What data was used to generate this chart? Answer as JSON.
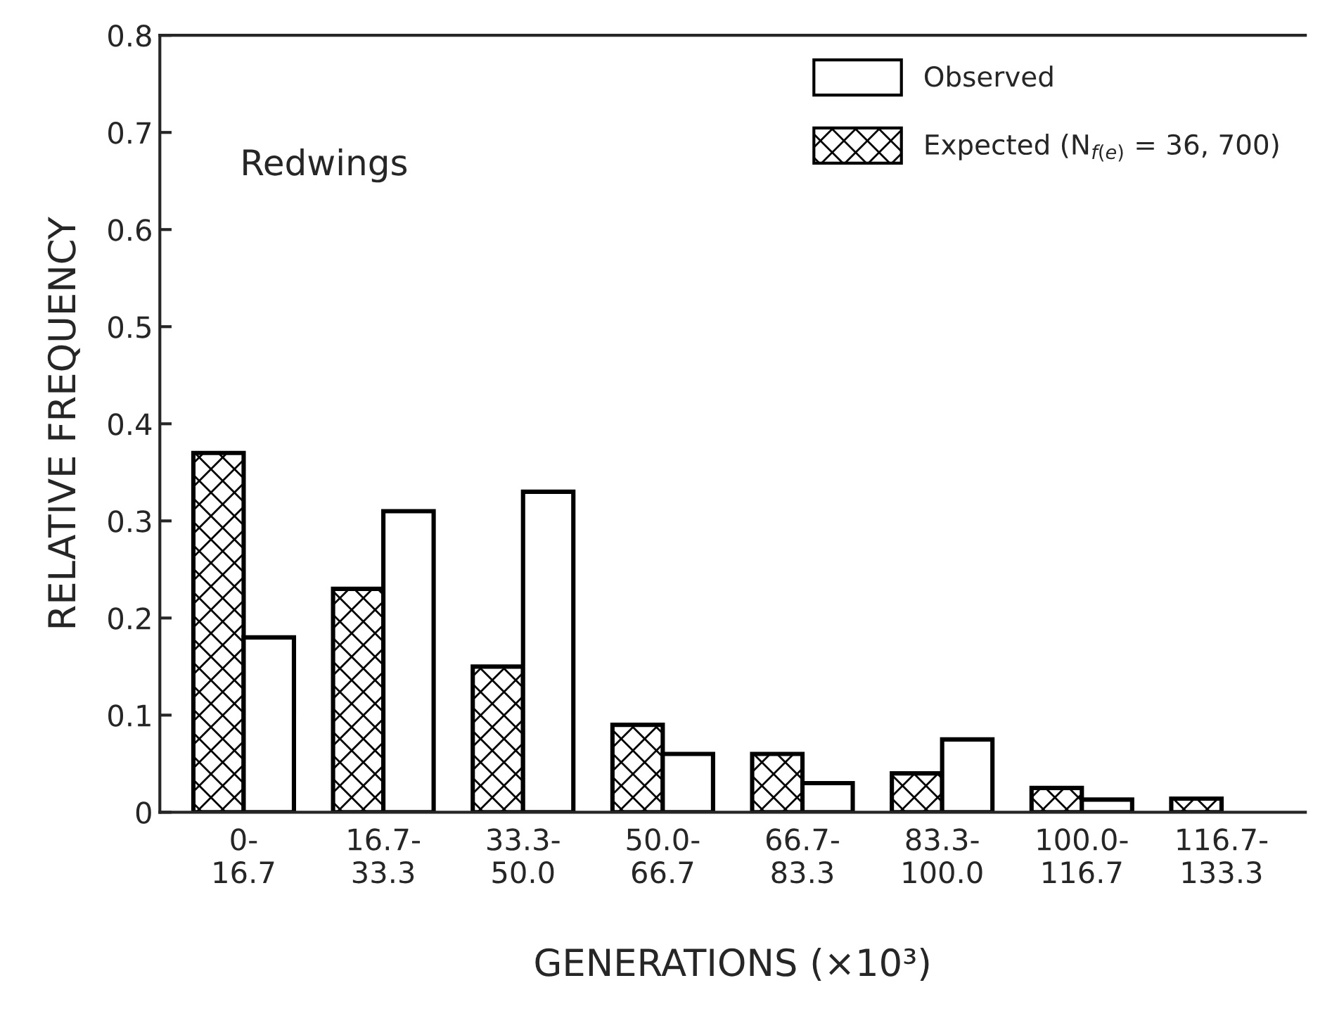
{
  "chart_data": {
    "type": "bar",
    "xlabel": "GENERATIONS (×10³)",
    "ylabel": "RELATIVE FREQUENCY",
    "categories": [
      "0-\n16.7",
      "16.7-\n33.3",
      "33.3-\n50.0",
      "50.0-\n66.7",
      "66.7-\n83.3",
      "83.3-\n100.0",
      "100.0-\n116.7",
      "116.7-\n133.3"
    ],
    "series": [
      {
        "name": "Expected (N$_{f(e)}$ = 36, 700)",
        "color": "#000000",
        "values": [
          0.37,
          0.23,
          0.15,
          0.09,
          0.06,
          0.04,
          0.025,
          0.014
        ]
      },
      {
        "name": "Observed",
        "color": "#ffffff",
        "values": [
          0.18,
          0.31,
          0.33,
          0.06,
          0.03,
          0.075,
          0.013,
          null
        ]
      }
    ],
    "ylim": [
      0,
      0.8
    ],
    "yticks": [
      0,
      0.1,
      0.2,
      0.3,
      0.4,
      0.5,
      0.6,
      0.7,
      0.8
    ],
    "grid": false,
    "legend": "top right",
    "annotations": [
      "Redwings"
    ]
  }
}
